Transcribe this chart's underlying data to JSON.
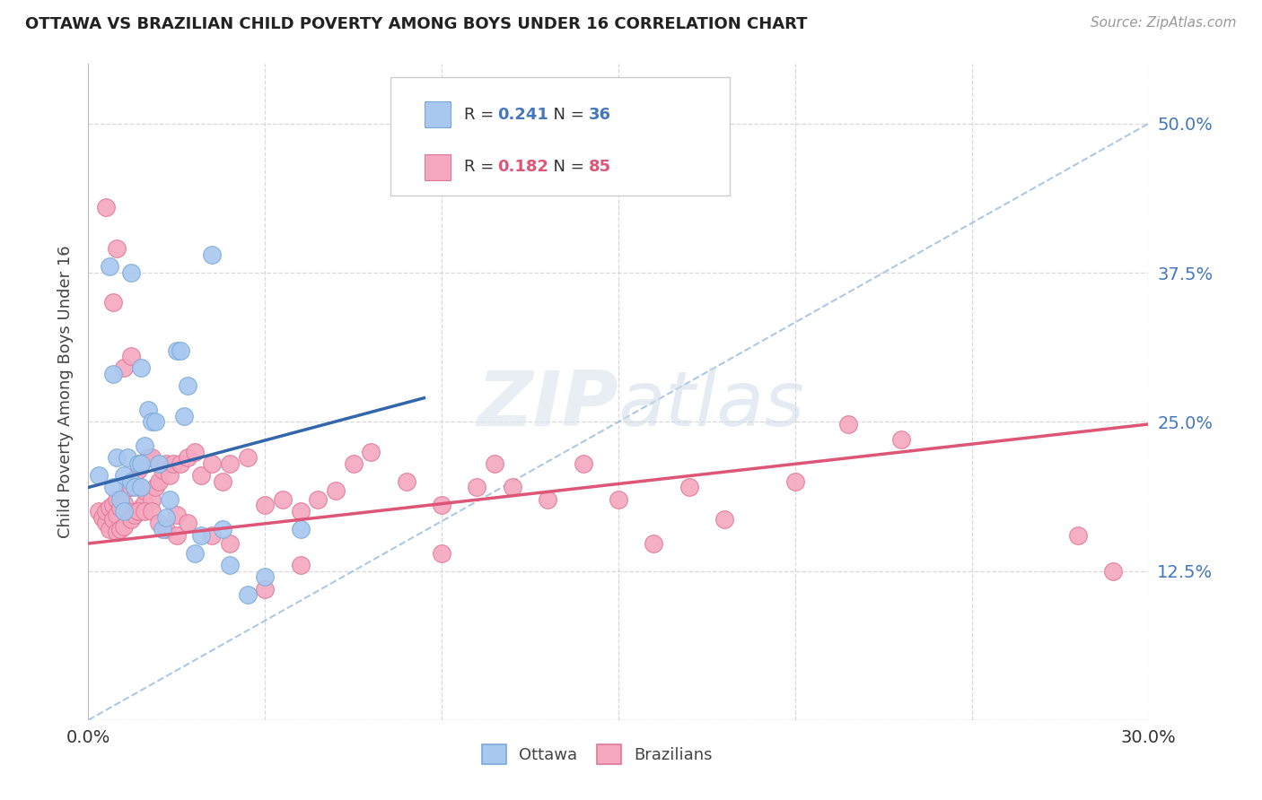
{
  "title": "OTTAWA VS BRAZILIAN CHILD POVERTY AMONG BOYS UNDER 16 CORRELATION CHART",
  "source": "Source: ZipAtlas.com",
  "ylabel": "Child Poverty Among Boys Under 16",
  "xlim": [
    0.0,
    0.3
  ],
  "ylim": [
    0.0,
    0.55
  ],
  "xticks": [
    0.0,
    0.05,
    0.1,
    0.15,
    0.2,
    0.25,
    0.3
  ],
  "xticklabels": [
    "0.0%",
    "",
    "",
    "",
    "",
    "",
    "30.0%"
  ],
  "yticks": [
    0.0,
    0.125,
    0.25,
    0.375,
    0.5
  ],
  "yticklabels": [
    "",
    "12.5%",
    "25.0%",
    "37.5%",
    "50.0%"
  ],
  "background_color": "#ffffff",
  "grid_color": "#d8d8d8",
  "watermark_zip": "ZIP",
  "watermark_atlas": "atlas",
  "ottawa_color": "#a8c8f0",
  "ottawa_edge": "#7aaad8",
  "brazilian_color": "#f5a8c0",
  "brazilian_edge": "#e07898",
  "legend_r_ottawa": "0.241",
  "legend_n_ottawa": "36",
  "legend_r_brazil": "0.182",
  "legend_n_brazil": "85",
  "ottawa_line_x": [
    0.0,
    0.095
  ],
  "ottawa_line_y": [
    0.195,
    0.27
  ],
  "brazil_line_x": [
    0.0,
    0.3
  ],
  "brazil_line_y": [
    0.148,
    0.248
  ],
  "diag_line_x": [
    0.0,
    0.3
  ],
  "diag_line_y": [
    0.0,
    0.5
  ],
  "ottawa_x": [
    0.003,
    0.006,
    0.007,
    0.007,
    0.008,
    0.009,
    0.01,
    0.01,
    0.011,
    0.012,
    0.013,
    0.014,
    0.015,
    0.015,
    0.016,
    0.017,
    0.018,
    0.019,
    0.02,
    0.021,
    0.022,
    0.023,
    0.025,
    0.026,
    0.027,
    0.028,
    0.03,
    0.032,
    0.035,
    0.038,
    0.04,
    0.045,
    0.05,
    0.06,
    0.015,
    0.012
  ],
  "ottawa_y": [
    0.205,
    0.38,
    0.29,
    0.195,
    0.22,
    0.185,
    0.175,
    0.205,
    0.22,
    0.2,
    0.195,
    0.215,
    0.215,
    0.195,
    0.23,
    0.26,
    0.25,
    0.25,
    0.215,
    0.16,
    0.17,
    0.185,
    0.31,
    0.31,
    0.255,
    0.28,
    0.14,
    0.155,
    0.39,
    0.16,
    0.13,
    0.105,
    0.12,
    0.16,
    0.295,
    0.375
  ],
  "brazil_x": [
    0.003,
    0.004,
    0.005,
    0.005,
    0.006,
    0.006,
    0.007,
    0.007,
    0.008,
    0.008,
    0.008,
    0.009,
    0.009,
    0.01,
    0.01,
    0.011,
    0.011,
    0.012,
    0.012,
    0.013,
    0.013,
    0.014,
    0.014,
    0.015,
    0.015,
    0.016,
    0.016,
    0.017,
    0.018,
    0.018,
    0.019,
    0.02,
    0.021,
    0.022,
    0.023,
    0.024,
    0.025,
    0.026,
    0.028,
    0.03,
    0.032,
    0.035,
    0.038,
    0.04,
    0.045,
    0.05,
    0.055,
    0.06,
    0.065,
    0.07,
    0.075,
    0.08,
    0.09,
    0.1,
    0.11,
    0.115,
    0.12,
    0.13,
    0.14,
    0.15,
    0.16,
    0.17,
    0.18,
    0.2,
    0.215,
    0.23,
    0.005,
    0.007,
    0.008,
    0.01,
    0.012,
    0.014,
    0.016,
    0.018,
    0.02,
    0.022,
    0.025,
    0.028,
    0.035,
    0.04,
    0.05,
    0.06,
    0.1,
    0.28,
    0.29
  ],
  "brazil_y": [
    0.175,
    0.17,
    0.165,
    0.175,
    0.16,
    0.178,
    0.168,
    0.18,
    0.158,
    0.172,
    0.185,
    0.16,
    0.178,
    0.162,
    0.182,
    0.175,
    0.195,
    0.168,
    0.195,
    0.172,
    0.2,
    0.175,
    0.21,
    0.178,
    0.215,
    0.182,
    0.192,
    0.22,
    0.185,
    0.22,
    0.195,
    0.2,
    0.21,
    0.215,
    0.205,
    0.215,
    0.172,
    0.215,
    0.22,
    0.225,
    0.205,
    0.215,
    0.2,
    0.215,
    0.22,
    0.18,
    0.185,
    0.175,
    0.185,
    0.192,
    0.215,
    0.225,
    0.2,
    0.18,
    0.195,
    0.215,
    0.195,
    0.185,
    0.215,
    0.185,
    0.148,
    0.195,
    0.168,
    0.2,
    0.248,
    0.235,
    0.43,
    0.35,
    0.395,
    0.295,
    0.305,
    0.175,
    0.175,
    0.175,
    0.165,
    0.16,
    0.155,
    0.165,
    0.155,
    0.148,
    0.11,
    0.13,
    0.14,
    0.155,
    0.125
  ]
}
